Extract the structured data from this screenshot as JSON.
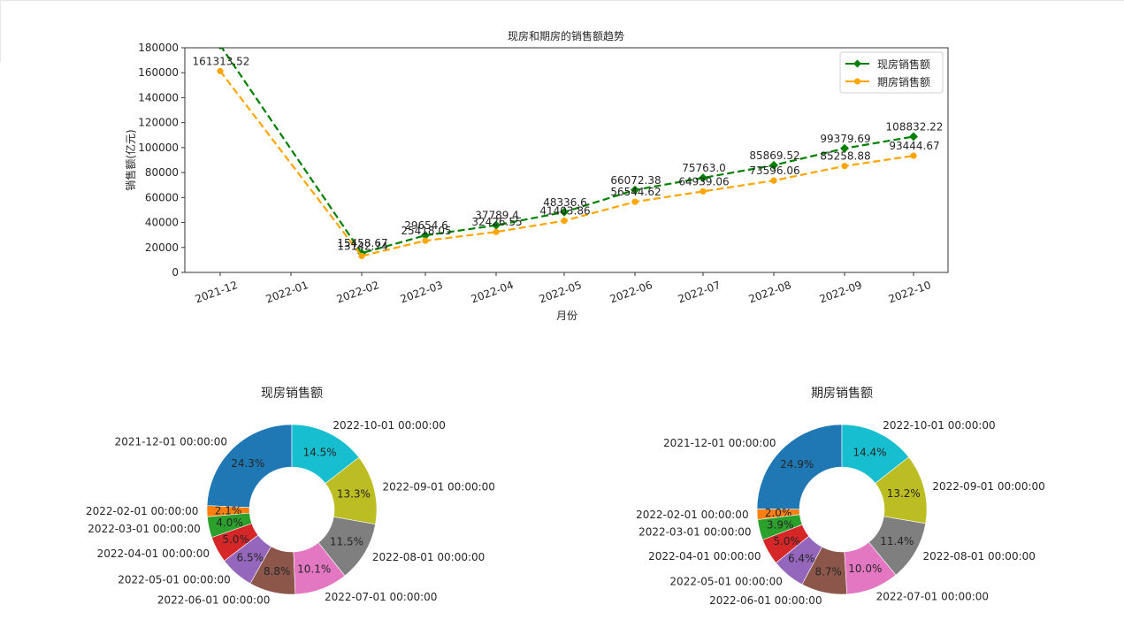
{
  "chart_data": [
    {
      "type": "line",
      "title": "现房和期房的销售额趋势",
      "xlabel": "月份",
      "ylabel": "销售额(亿元)",
      "ylim": [
        0,
        180000
      ],
      "yticks": [
        "0",
        "20000",
        "40000",
        "60000",
        "80000",
        "100000",
        "120000",
        "140000",
        "160000",
        "180000"
      ],
      "xticks": [
        "2021-12",
        "2022-01",
        "2022-02",
        "2022-03",
        "2022-04",
        "2022-05",
        "2022-06",
        "2022-07",
        "2022-08",
        "2022-09",
        "2022-10"
      ],
      "x": [
        "2021-12",
        "2022-02",
        "2022-03",
        "2022-04",
        "2022-05",
        "2022-06",
        "2022-07",
        "2022-08",
        "2022-09",
        "2022-10"
      ],
      "grid": false,
      "legend_position": "upper right",
      "series": [
        {
          "name": "现房销售额",
          "color": "#008000",
          "marker": "diamond",
          "linestyle": "dashed",
          "values": [
            182000,
            15458.67,
            29654.6,
            37789.4,
            48336.6,
            66072.38,
            75763.0,
            85869.52,
            99379.69,
            108832.22
          ],
          "labels": [
            "",
            "15458.67",
            "29654.6",
            "37789.4",
            "48336.6",
            "66072.38",
            "75763.0",
            "85869.52",
            "99379.69",
            "108832.22"
          ]
        },
        {
          "name": "期房销售额",
          "color": "#FFA500",
          "marker": "circle",
          "linestyle": "dashed",
          "values": [
            161313.52,
            13142.74,
            25418.05,
            32426.55,
            41403.86,
            56544.62,
            64939.06,
            73596.06,
            85258.88,
            93444.67
          ],
          "labels": [
            "161313.52",
            "13142.74",
            "25418.05",
            "32426.55",
            "41403.86",
            "56544.62",
            "64939.06",
            "73596.06",
            "85258.88",
            "93444.67"
          ]
        }
      ]
    },
    {
      "type": "pie",
      "style": "donut",
      "title": "现房销售额",
      "categories": [
        "2021-12-01 00:00:00",
        "2022-02-01 00:00:00",
        "2022-03-01 00:00:00",
        "2022-04-01 00:00:00",
        "2022-05-01 00:00:00",
        "2022-06-01 00:00:00",
        "2022-07-01 00:00:00",
        "2022-08-01 00:00:00",
        "2022-09-01 00:00:00",
        "2022-10-01 00:00:00"
      ],
      "values": [
        24.3,
        2.1,
        4.0,
        5.0,
        6.5,
        8.8,
        10.1,
        11.5,
        13.3,
        14.5
      ],
      "pct_labels": [
        "24.3%",
        "2.1%",
        "4.0%",
        "5.0%",
        "6.5%",
        "8.8%",
        "10.1%",
        "11.5%",
        "13.3%",
        "14.5%"
      ],
      "colors": [
        "#1f77b4",
        "#ff7f0e",
        "#2ca02c",
        "#d62728",
        "#9467bd",
        "#8c564b",
        "#e377c2",
        "#7f7f7f",
        "#bcbd22",
        "#17becf"
      ]
    },
    {
      "type": "pie",
      "style": "donut",
      "title": "期房销售额",
      "categories": [
        "2021-12-01 00:00:00",
        "2022-02-01 00:00:00",
        "2022-03-01 00:00:00",
        "2022-04-01 00:00:00",
        "2022-05-01 00:00:00",
        "2022-06-01 00:00:00",
        "2022-07-01 00:00:00",
        "2022-08-01 00:00:00",
        "2022-09-01 00:00:00",
        "2022-10-01 00:00:00"
      ],
      "values": [
        24.9,
        2.0,
        3.9,
        5.0,
        6.4,
        8.7,
        10.0,
        11.4,
        13.2,
        14.4
      ],
      "pct_labels": [
        "24.9%",
        "2.0%",
        "3.9%",
        "5.0%",
        "6.4%",
        "8.7%",
        "10.0%",
        "11.4%",
        "13.2%",
        "14.4%"
      ],
      "colors": [
        "#1f77b4",
        "#ff7f0e",
        "#2ca02c",
        "#d62728",
        "#9467bd",
        "#8c564b",
        "#e377c2",
        "#7f7f7f",
        "#bcbd22",
        "#17becf"
      ]
    }
  ]
}
